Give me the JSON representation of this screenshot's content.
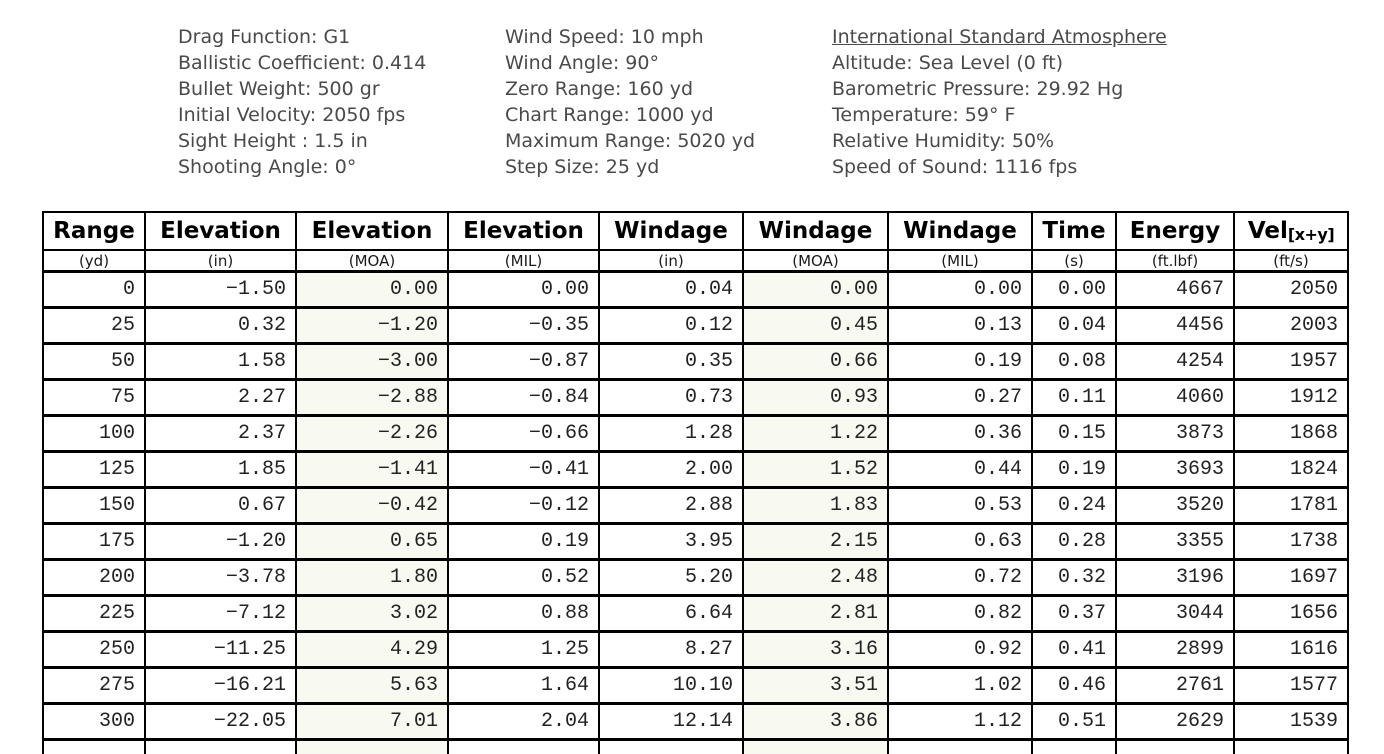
{
  "info": {
    "projectile": [
      "Drag Function: G1",
      "Ballistic Coefficient: 0.414",
      "Bullet Weight: 500 gr",
      "Initial Velocity: 2050 fps",
      "Sight Height : 1.5 in",
      "Shooting Angle: 0°"
    ],
    "conditions": [
      "Wind Speed: 10 mph",
      "Wind Angle: 90°",
      "Zero Range: 160 yd",
      "Chart Range: 1000 yd",
      "Maximum Range: 5020 yd",
      "Step Size: 25 yd"
    ],
    "atmosphere_heading": "International Standard Atmosphere",
    "atmosphere": [
      "Altitude: Sea Level (0 ft)",
      "Barometric Pressure: 29.92 Hg",
      "Temperature: 59° F",
      "Relative Humidity: 50%",
      "Speed of Sound: 1116 fps"
    ]
  },
  "table": {
    "columns": [
      {
        "title": "Range",
        "unit": "(yd)",
        "tint": false
      },
      {
        "title": "Elevation",
        "unit": "(in)",
        "tint": false
      },
      {
        "title": "Elevation",
        "unit": "(MOA)",
        "tint": true
      },
      {
        "title": "Elevation",
        "unit": "(MIL)",
        "tint": false
      },
      {
        "title": "Windage",
        "unit": "(in)",
        "tint": false
      },
      {
        "title": "Windage",
        "unit": "(MOA)",
        "tint": true
      },
      {
        "title": "Windage",
        "unit": "(MIL)",
        "tint": false
      },
      {
        "title": "Time",
        "unit": "(s)",
        "tint": false
      },
      {
        "title": "Energy",
        "unit": "(ft.lbf)",
        "tint": false
      },
      {
        "title": "Vel",
        "title_sub": "[x+y]",
        "unit": "(ft/s)",
        "tint": false
      }
    ],
    "rows": [
      [
        "0",
        "−1.50",
        "0.00",
        "0.00",
        "0.04",
        "0.00",
        "0.00",
        "0.00",
        "4667",
        "2050"
      ],
      [
        "25",
        "0.32",
        "−1.20",
        "−0.35",
        "0.12",
        "0.45",
        "0.13",
        "0.04",
        "4456",
        "2003"
      ],
      [
        "50",
        "1.58",
        "−3.00",
        "−0.87",
        "0.35",
        "0.66",
        "0.19",
        "0.08",
        "4254",
        "1957"
      ],
      [
        "75",
        "2.27",
        "−2.88",
        "−0.84",
        "0.73",
        "0.93",
        "0.27",
        "0.11",
        "4060",
        "1912"
      ],
      [
        "100",
        "2.37",
        "−2.26",
        "−0.66",
        "1.28",
        "1.22",
        "0.36",
        "0.15",
        "3873",
        "1868"
      ],
      [
        "125",
        "1.85",
        "−1.41",
        "−0.41",
        "2.00",
        "1.52",
        "0.44",
        "0.19",
        "3693",
        "1824"
      ],
      [
        "150",
        "0.67",
        "−0.42",
        "−0.12",
        "2.88",
        "1.83",
        "0.53",
        "0.24",
        "3520",
        "1781"
      ],
      [
        "175",
        "−1.20",
        "0.65",
        "0.19",
        "3.95",
        "2.15",
        "0.63",
        "0.28",
        "3355",
        "1738"
      ],
      [
        "200",
        "−3.78",
        "1.80",
        "0.52",
        "5.20",
        "2.48",
        "0.72",
        "0.32",
        "3196",
        "1697"
      ],
      [
        "225",
        "−7.12",
        "3.02",
        "0.88",
        "6.64",
        "2.81",
        "0.82",
        "0.37",
        "3044",
        "1656"
      ],
      [
        "250",
        "−11.25",
        "4.29",
        "1.25",
        "8.27",
        "3.16",
        "0.92",
        "0.41",
        "2899",
        "1616"
      ],
      [
        "275",
        "−16.21",
        "5.63",
        "1.64",
        "10.10",
        "3.51",
        "1.02",
        "0.46",
        "2761",
        "1577"
      ],
      [
        "300",
        "−22.05",
        "7.01",
        "2.04",
        "12.14",
        "3.86",
        "1.12",
        "0.51",
        "2629",
        "1539"
      ]
    ],
    "partial_row_visible": true
  },
  "colors": {
    "tint_column_bg": "#f8faf2",
    "border": "#000000",
    "info_text": "#4a4a4a"
  }
}
